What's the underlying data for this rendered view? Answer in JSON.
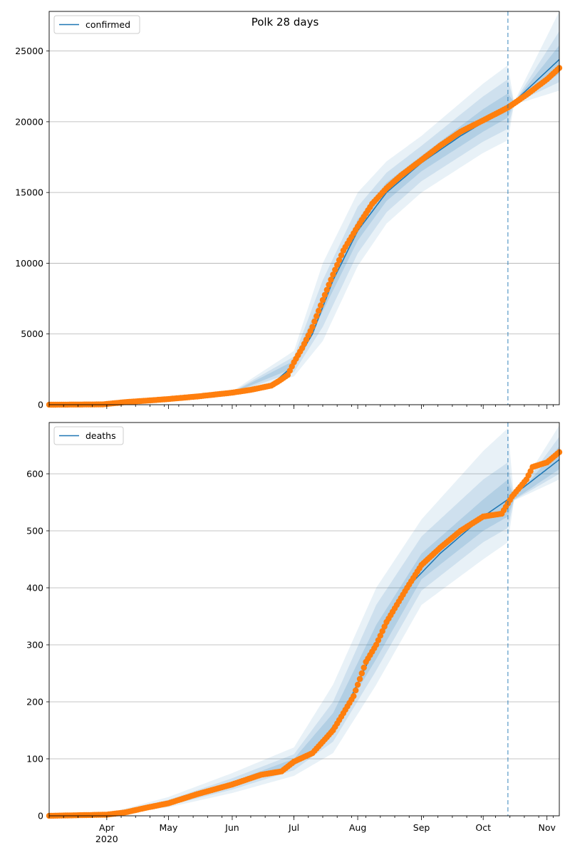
{
  "title": "Polk 28 days",
  "colors": {
    "model": "#1f77b4",
    "observed": "#ff7f0e",
    "band": "#1f77b4",
    "grid": "#b0b0b0",
    "vline": "#1f77b4"
  },
  "x_axis": {
    "month_labels": [
      "Apr",
      "May",
      "Jun",
      "Jul",
      "Aug",
      "Sep",
      "Oct",
      "Nov"
    ],
    "year_label": "2020",
    "start": "2020-03-04",
    "end": "2020-11-07"
  },
  "forecast_start": "2020-10-13",
  "chart_data": [
    {
      "type": "line",
      "legend": "confirmed",
      "ylim": [
        0,
        27800
      ],
      "yticks": [
        0,
        5000,
        10000,
        15000,
        20000,
        25000
      ],
      "grid": "horizontal",
      "legend_position": "top-left",
      "observed_points": [
        [
          "2020-03-04",
          0
        ],
        [
          "2020-03-30",
          20
        ],
        [
          "2020-04-03",
          80
        ],
        [
          "2020-04-10",
          180
        ],
        [
          "2020-04-20",
          280
        ],
        [
          "2020-05-01",
          400
        ],
        [
          "2020-05-15",
          580
        ],
        [
          "2020-06-01",
          850
        ],
        [
          "2020-06-10",
          1050
        ],
        [
          "2020-06-20",
          1350
        ],
        [
          "2020-06-24",
          1700
        ],
        [
          "2020-06-28",
          2100
        ],
        [
          "2020-07-01",
          3000
        ],
        [
          "2020-07-05",
          4000
        ],
        [
          "2020-07-10",
          5500
        ],
        [
          "2020-07-15",
          7400
        ],
        [
          "2020-07-20",
          9200
        ],
        [
          "2020-07-25",
          10900
        ],
        [
          "2020-08-01",
          12600
        ],
        [
          "2020-08-08",
          14200
        ],
        [
          "2020-08-15",
          15300
        ],
        [
          "2020-08-22",
          16200
        ],
        [
          "2020-09-01",
          17300
        ],
        [
          "2020-09-10",
          18300
        ],
        [
          "2020-09-20",
          19300
        ],
        [
          "2020-10-01",
          20100
        ],
        [
          "2020-10-13",
          21000
        ],
        [
          "2020-10-22",
          21900
        ],
        [
          "2020-11-01",
          23000
        ],
        [
          "2020-11-07",
          23800
        ]
      ],
      "model": [
        [
          "2020-03-04",
          0
        ],
        [
          "2020-04-01",
          100
        ],
        [
          "2020-05-01",
          400
        ],
        [
          "2020-06-01",
          850
        ],
        [
          "2020-06-20",
          1400
        ],
        [
          "2020-07-01",
          2800
        ],
        [
          "2020-07-10",
          5000
        ],
        [
          "2020-07-20",
          8800
        ],
        [
          "2020-08-01",
          12300
        ],
        [
          "2020-08-15",
          15000
        ],
        [
          "2020-09-01",
          17100
        ],
        [
          "2020-09-20",
          19000
        ],
        [
          "2020-10-13",
          21000
        ],
        [
          "2020-11-07",
          24400
        ]
      ],
      "bands": [
        {
          "lower": [
            [
              "2020-06-01",
              750
            ],
            [
              "2020-07-01",
              2000
            ],
            [
              "2020-07-15",
              4500
            ],
            [
              "2020-08-01",
              9800
            ],
            [
              "2020-08-15",
              12800
            ],
            [
              "2020-09-01",
              15000
            ],
            [
              "2020-10-01",
              17800
            ],
            [
              "2020-10-13",
              18700
            ],
            [
              "2020-10-16",
              21200
            ],
            [
              "2020-11-07",
              22200
            ]
          ],
          "upper": [
            [
              "2020-06-01",
              950
            ],
            [
              "2020-07-01",
              3800
            ],
            [
              "2020-07-15",
              10000
            ],
            [
              "2020-08-01",
              15000
            ],
            [
              "2020-08-15",
              17200
            ],
            [
              "2020-09-01",
              19000
            ],
            [
              "2020-10-01",
              22700
            ],
            [
              "2020-10-13",
              24000
            ],
            [
              "2020-10-16",
              21400
            ],
            [
              "2020-11-07",
              27800
            ]
          ]
        },
        {
          "lower": [
            [
              "2020-06-01",
              800
            ],
            [
              "2020-07-01",
              2300
            ],
            [
              "2020-07-15",
              5500
            ],
            [
              "2020-08-01",
              10700
            ],
            [
              "2020-08-15",
              13600
            ],
            [
              "2020-09-01",
              15800
            ],
            [
              "2020-10-01",
              18600
            ],
            [
              "2020-10-13",
              19500
            ],
            [
              "2020-10-16",
              21300
            ],
            [
              "2020-11-07",
              22800
            ]
          ],
          "upper": [
            [
              "2020-06-01",
              900
            ],
            [
              "2020-07-01",
              3400
            ],
            [
              "2020-07-15",
              8800
            ],
            [
              "2020-08-01",
              14000
            ],
            [
              "2020-08-15",
              16400
            ],
            [
              "2020-09-01",
              18300
            ],
            [
              "2020-10-01",
              21800
            ],
            [
              "2020-10-13",
              23000
            ],
            [
              "2020-10-16",
              21350
            ],
            [
              "2020-11-07",
              26400
            ]
          ]
        },
        {
          "lower": [
            [
              "2020-06-01",
              830
            ],
            [
              "2020-07-01",
              2600
            ],
            [
              "2020-07-15",
              6600
            ],
            [
              "2020-08-01",
              11600
            ],
            [
              "2020-08-15",
              14400
            ],
            [
              "2020-09-01",
              16500
            ],
            [
              "2020-10-01",
              19300
            ],
            [
              "2020-10-13",
              20300
            ],
            [
              "2020-10-16",
              21350
            ],
            [
              "2020-11-07",
              23400
            ]
          ],
          "upper": [
            [
              "2020-06-01",
              870
            ],
            [
              "2020-07-01",
              3100
            ],
            [
              "2020-07-15",
              7800
            ],
            [
              "2020-08-01",
              13100
            ],
            [
              "2020-08-15",
              15700
            ],
            [
              "2020-09-01",
              17600
            ],
            [
              "2020-10-01",
              20900
            ],
            [
              "2020-10-13",
              22000
            ],
            [
              "2020-10-16",
              21380
            ],
            [
              "2020-11-07",
              25400
            ]
          ]
        }
      ]
    },
    {
      "type": "line",
      "legend": "deaths",
      "ylim": [
        0,
        690
      ],
      "yticks": [
        0,
        100,
        200,
        300,
        400,
        500,
        600
      ],
      "grid": "horizontal",
      "legend_position": "top-left",
      "observed_points": [
        [
          "2020-03-04",
          0
        ],
        [
          "2020-04-01",
          2
        ],
        [
          "2020-04-10",
          6
        ],
        [
          "2020-04-20",
          14
        ],
        [
          "2020-05-01",
          22
        ],
        [
          "2020-05-15",
          38
        ],
        [
          "2020-06-01",
          55
        ],
        [
          "2020-06-15",
          72
        ],
        [
          "2020-06-25",
          78
        ],
        [
          "2020-07-01",
          95
        ],
        [
          "2020-07-10",
          110
        ],
        [
          "2020-07-20",
          150
        ],
        [
          "2020-07-30",
          210
        ],
        [
          "2020-08-05",
          270
        ],
        [
          "2020-08-10",
          300
        ],
        [
          "2020-08-15",
          340
        ],
        [
          "2020-08-20",
          370
        ],
        [
          "2020-08-25",
          400
        ],
        [
          "2020-09-01",
          440
        ],
        [
          "2020-09-10",
          470
        ],
        [
          "2020-09-20",
          500
        ],
        [
          "2020-10-01",
          525
        ],
        [
          "2020-10-10",
          530
        ],
        [
          "2020-10-15",
          560
        ],
        [
          "2020-10-22",
          590
        ],
        [
          "2020-10-25",
          612
        ],
        [
          "2020-11-01",
          620
        ],
        [
          "2020-11-07",
          638
        ]
      ],
      "model": [
        [
          "2020-03-04",
          0
        ],
        [
          "2020-04-01",
          2
        ],
        [
          "2020-05-01",
          22
        ],
        [
          "2020-06-01",
          55
        ],
        [
          "2020-06-25",
          80
        ],
        [
          "2020-07-10",
          110
        ],
        [
          "2020-07-25",
          180
        ],
        [
          "2020-08-10",
          300
        ],
        [
          "2020-08-25",
          400
        ],
        [
          "2020-09-10",
          460
        ],
        [
          "2020-10-01",
          525
        ],
        [
          "2020-10-13",
          555
        ],
        [
          "2020-11-07",
          625
        ]
      ],
      "bands": [
        {
          "lower": [
            [
              "2020-04-01",
              1
            ],
            [
              "2020-05-01",
              15
            ],
            [
              "2020-06-01",
              40
            ],
            [
              "2020-07-01",
              70
            ],
            [
              "2020-07-20",
              110
            ],
            [
              "2020-08-10",
              230
            ],
            [
              "2020-09-01",
              370
            ],
            [
              "2020-10-01",
              450
            ],
            [
              "2020-10-13",
              480
            ],
            [
              "2020-10-16",
              553
            ],
            [
              "2020-11-07",
              590
            ]
          ],
          "upper": [
            [
              "2020-04-01",
              4
            ],
            [
              "2020-05-01",
              33
            ],
            [
              "2020-06-01",
              75
            ],
            [
              "2020-07-01",
              120
            ],
            [
              "2020-07-20",
              230
            ],
            [
              "2020-08-10",
              400
            ],
            [
              "2020-09-01",
              520
            ],
            [
              "2020-10-01",
              640
            ],
            [
              "2020-10-13",
              680
            ],
            [
              "2020-10-16",
              558
            ],
            [
              "2020-11-07",
              685
            ]
          ]
        },
        {
          "lower": [
            [
              "2020-04-01",
              1.5
            ],
            [
              "2020-05-01",
              18
            ],
            [
              "2020-06-01",
              46
            ],
            [
              "2020-07-01",
              80
            ],
            [
              "2020-07-20",
              130
            ],
            [
              "2020-08-10",
              255
            ],
            [
              "2020-09-01",
              395
            ],
            [
              "2020-10-01",
              480
            ],
            [
              "2020-10-13",
              505
            ],
            [
              "2020-10-16",
              554
            ],
            [
              "2020-11-07",
              600
            ]
          ],
          "upper": [
            [
              "2020-04-01",
              3
            ],
            [
              "2020-05-01",
              28
            ],
            [
              "2020-06-01",
              66
            ],
            [
              "2020-07-01",
              108
            ],
            [
              "2020-07-20",
              200
            ],
            [
              "2020-08-10",
              370
            ],
            [
              "2020-09-01",
              490
            ],
            [
              "2020-10-01",
              590
            ],
            [
              "2020-10-13",
              620
            ],
            [
              "2020-10-16",
              557
            ],
            [
              "2020-11-07",
              665
            ]
          ]
        },
        {
          "lower": [
            [
              "2020-04-01",
              2
            ],
            [
              "2020-05-01",
              20
            ],
            [
              "2020-06-01",
              50
            ],
            [
              "2020-07-01",
              88
            ],
            [
              "2020-07-20",
              150
            ],
            [
              "2020-08-10",
              275
            ],
            [
              "2020-09-01",
              415
            ],
            [
              "2020-10-01",
              500
            ],
            [
              "2020-10-13",
              525
            ],
            [
              "2020-10-16",
              555
            ],
            [
              "2020-11-07",
              608
            ]
          ],
          "upper": [
            [
              "2020-04-01",
              2.5
            ],
            [
              "2020-05-01",
              25
            ],
            [
              "2020-06-01",
              60
            ],
            [
              "2020-07-01",
              100
            ],
            [
              "2020-07-20",
              180
            ],
            [
              "2020-08-10",
              335
            ],
            [
              "2020-09-01",
              460
            ],
            [
              "2020-10-01",
              555
            ],
            [
              "2020-10-13",
              590
            ],
            [
              "2020-10-16",
              556
            ],
            [
              "2020-11-07",
              648
            ]
          ]
        }
      ]
    }
  ]
}
